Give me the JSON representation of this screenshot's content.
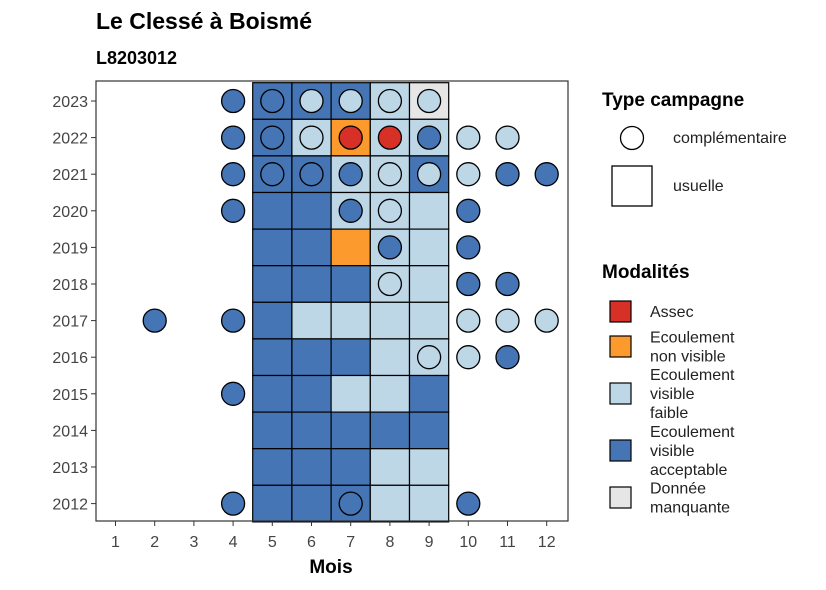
{
  "header": {
    "title": "Le Clessé  à Boismé",
    "subtitle": "L8203012"
  },
  "chart_data": {
    "type": "heatmap",
    "title": "Le Clessé  à Boismé",
    "subtitle": "L8203012",
    "xlabel": "Mois",
    "ylabel": "",
    "x_ticks": [
      "1",
      "2",
      "3",
      "4",
      "5",
      "6",
      "7",
      "8",
      "9",
      "10",
      "11",
      "12"
    ],
    "y_ticks": [
      "2023",
      "2022",
      "2021",
      "2020",
      "2019",
      "2018",
      "2017",
      "2016",
      "2015",
      "2014",
      "2013",
      "2012"
    ],
    "grid": false,
    "legend_position": "right",
    "colors": {
      "Assec": "#d73027",
      "Ecoulement non visible": "#fd9a2e",
      "Ecoulement visible faible": "#bdd7e7",
      "Ecoulement visible acceptable": "#4575b4",
      "Donnée manquante": "#e6e6e6"
    },
    "legend_type": {
      "title": "Type campagne",
      "items": [
        {
          "label": "complémentaire",
          "shape": "circle"
        },
        {
          "label": "usuelle",
          "shape": "square"
        }
      ]
    },
    "legend_modalites": {
      "title": "Modalités",
      "items": [
        {
          "key": "Assec",
          "lines": [
            "Assec"
          ]
        },
        {
          "key": "Ecoulement non visible",
          "lines": [
            "Ecoulement",
            "non visible"
          ]
        },
        {
          "key": "Ecoulement visible faible",
          "lines": [
            "Ecoulement",
            "visible",
            "faible"
          ]
        },
        {
          "key": "Ecoulement visible acceptable",
          "lines": [
            "Ecoulement",
            "visible",
            "acceptable"
          ]
        },
        {
          "key": "Donnée manquante",
          "lines": [
            "Donnée",
            "manquante"
          ]
        }
      ]
    },
    "usuelle": [
      {
        "year": 2023,
        "month": 5,
        "value": "Ecoulement visible acceptable"
      },
      {
        "year": 2023,
        "month": 6,
        "value": "Ecoulement visible acceptable"
      },
      {
        "year": 2023,
        "month": 7,
        "value": "Ecoulement visible acceptable"
      },
      {
        "year": 2023,
        "month": 8,
        "value": "Ecoulement visible faible"
      },
      {
        "year": 2023,
        "month": 9,
        "value": "Donnée manquante"
      },
      {
        "year": 2022,
        "month": 5,
        "value": "Ecoulement visible acceptable"
      },
      {
        "year": 2022,
        "month": 6,
        "value": "Ecoulement visible faible"
      },
      {
        "year": 2022,
        "month": 7,
        "value": "Ecoulement non visible"
      },
      {
        "year": 2022,
        "month": 8,
        "value": "Ecoulement visible faible"
      },
      {
        "year": 2022,
        "month": 9,
        "value": "Ecoulement visible faible"
      },
      {
        "year": 2021,
        "month": 5,
        "value": "Ecoulement visible acceptable"
      },
      {
        "year": 2021,
        "month": 6,
        "value": "Ecoulement visible acceptable"
      },
      {
        "year": 2021,
        "month": 7,
        "value": "Ecoulement visible faible"
      },
      {
        "year": 2021,
        "month": 8,
        "value": "Ecoulement visible faible"
      },
      {
        "year": 2021,
        "month": 9,
        "value": "Ecoulement visible acceptable"
      },
      {
        "year": 2020,
        "month": 5,
        "value": "Ecoulement visible acceptable"
      },
      {
        "year": 2020,
        "month": 6,
        "value": "Ecoulement visible acceptable"
      },
      {
        "year": 2020,
        "month": 7,
        "value": "Ecoulement visible faible"
      },
      {
        "year": 2020,
        "month": 8,
        "value": "Ecoulement visible faible"
      },
      {
        "year": 2020,
        "month": 9,
        "value": "Ecoulement visible faible"
      },
      {
        "year": 2019,
        "month": 5,
        "value": "Ecoulement visible acceptable"
      },
      {
        "year": 2019,
        "month": 6,
        "value": "Ecoulement visible acceptable"
      },
      {
        "year": 2019,
        "month": 7,
        "value": "Ecoulement non visible"
      },
      {
        "year": 2019,
        "month": 8,
        "value": "Ecoulement visible faible"
      },
      {
        "year": 2019,
        "month": 9,
        "value": "Ecoulement visible faible"
      },
      {
        "year": 2018,
        "month": 5,
        "value": "Ecoulement visible acceptable"
      },
      {
        "year": 2018,
        "month": 6,
        "value": "Ecoulement visible acceptable"
      },
      {
        "year": 2018,
        "month": 7,
        "value": "Ecoulement visible acceptable"
      },
      {
        "year": 2018,
        "month": 8,
        "value": "Ecoulement visible faible"
      },
      {
        "year": 2018,
        "month": 9,
        "value": "Ecoulement visible faible"
      },
      {
        "year": 2017,
        "month": 5,
        "value": "Ecoulement visible acceptable"
      },
      {
        "year": 2017,
        "month": 6,
        "value": "Ecoulement visible faible"
      },
      {
        "year": 2017,
        "month": 7,
        "value": "Ecoulement visible faible"
      },
      {
        "year": 2017,
        "month": 8,
        "value": "Ecoulement visible faible"
      },
      {
        "year": 2017,
        "month": 9,
        "value": "Ecoulement visible faible"
      },
      {
        "year": 2016,
        "month": 5,
        "value": "Ecoulement visible acceptable"
      },
      {
        "year": 2016,
        "month": 6,
        "value": "Ecoulement visible acceptable"
      },
      {
        "year": 2016,
        "month": 7,
        "value": "Ecoulement visible acceptable"
      },
      {
        "year": 2016,
        "month": 8,
        "value": "Ecoulement visible faible"
      },
      {
        "year": 2016,
        "month": 9,
        "value": "Ecoulement visible faible"
      },
      {
        "year": 2015,
        "month": 5,
        "value": "Ecoulement visible acceptable"
      },
      {
        "year": 2015,
        "month": 6,
        "value": "Ecoulement visible acceptable"
      },
      {
        "year": 2015,
        "month": 7,
        "value": "Ecoulement visible faible"
      },
      {
        "year": 2015,
        "month": 8,
        "value": "Ecoulement visible faible"
      },
      {
        "year": 2015,
        "month": 9,
        "value": "Ecoulement visible acceptable"
      },
      {
        "year": 2014,
        "month": 5,
        "value": "Ecoulement visible acceptable"
      },
      {
        "year": 2014,
        "month": 6,
        "value": "Ecoulement visible acceptable"
      },
      {
        "year": 2014,
        "month": 7,
        "value": "Ecoulement visible acceptable"
      },
      {
        "year": 2014,
        "month": 8,
        "value": "Ecoulement visible acceptable"
      },
      {
        "year": 2014,
        "month": 9,
        "value": "Ecoulement visible acceptable"
      },
      {
        "year": 2013,
        "month": 5,
        "value": "Ecoulement visible acceptable"
      },
      {
        "year": 2013,
        "month": 6,
        "value": "Ecoulement visible acceptable"
      },
      {
        "year": 2013,
        "month": 7,
        "value": "Ecoulement visible acceptable"
      },
      {
        "year": 2013,
        "month": 8,
        "value": "Ecoulement visible faible"
      },
      {
        "year": 2013,
        "month": 9,
        "value": "Ecoulement visible faible"
      },
      {
        "year": 2012,
        "month": 5,
        "value": "Ecoulement visible acceptable"
      },
      {
        "year": 2012,
        "month": 6,
        "value": "Ecoulement visible acceptable"
      },
      {
        "year": 2012,
        "month": 7,
        "value": "Ecoulement visible acceptable"
      },
      {
        "year": 2012,
        "month": 8,
        "value": "Ecoulement visible faible"
      },
      {
        "year": 2012,
        "month": 9,
        "value": "Ecoulement visible faible"
      }
    ],
    "complementaire": [
      {
        "year": 2023,
        "month": 4,
        "value": "Ecoulement visible acceptable"
      },
      {
        "year": 2023,
        "month": 5,
        "value": "Ecoulement visible acceptable"
      },
      {
        "year": 2023,
        "month": 6,
        "value": "Ecoulement visible faible"
      },
      {
        "year": 2023,
        "month": 7,
        "value": "Ecoulement visible faible"
      },
      {
        "year": 2023,
        "month": 8,
        "value": "Ecoulement visible faible"
      },
      {
        "year": 2023,
        "month": 9,
        "value": "Ecoulement visible faible"
      },
      {
        "year": 2022,
        "month": 4,
        "value": "Ecoulement visible acceptable"
      },
      {
        "year": 2022,
        "month": 5,
        "value": "Ecoulement visible acceptable"
      },
      {
        "year": 2022,
        "month": 6,
        "value": "Ecoulement visible faible"
      },
      {
        "year": 2022,
        "month": 7,
        "value": "Assec"
      },
      {
        "year": 2022,
        "month": 8,
        "value": "Assec"
      },
      {
        "year": 2022,
        "month": 9,
        "value": "Ecoulement visible acceptable"
      },
      {
        "year": 2022,
        "month": 10,
        "value": "Ecoulement visible faible"
      },
      {
        "year": 2022,
        "month": 11,
        "value": "Ecoulement visible faible"
      },
      {
        "year": 2021,
        "month": 4,
        "value": "Ecoulement visible acceptable"
      },
      {
        "year": 2021,
        "month": 5,
        "value": "Ecoulement visible acceptable"
      },
      {
        "year": 2021,
        "month": 6,
        "value": "Ecoulement visible acceptable"
      },
      {
        "year": 2021,
        "month": 7,
        "value": "Ecoulement visible acceptable"
      },
      {
        "year": 2021,
        "month": 8,
        "value": "Ecoulement visible faible"
      },
      {
        "year": 2021,
        "month": 9,
        "value": "Ecoulement visible faible"
      },
      {
        "year": 2021,
        "month": 10,
        "value": "Ecoulement visible faible"
      },
      {
        "year": 2021,
        "month": 11,
        "value": "Ecoulement visible acceptable"
      },
      {
        "year": 2021,
        "month": 12,
        "value": "Ecoulement visible acceptable"
      },
      {
        "year": 2020,
        "month": 4,
        "value": "Ecoulement visible acceptable"
      },
      {
        "year": 2020,
        "month": 7,
        "value": "Ecoulement visible acceptable"
      },
      {
        "year": 2020,
        "month": 8,
        "value": "Ecoulement visible faible"
      },
      {
        "year": 2020,
        "month": 10,
        "value": "Ecoulement visible acceptable"
      },
      {
        "year": 2019,
        "month": 8,
        "value": "Ecoulement visible acceptable"
      },
      {
        "year": 2019,
        "month": 10,
        "value": "Ecoulement visible acceptable"
      },
      {
        "year": 2018,
        "month": 8,
        "value": "Ecoulement visible faible"
      },
      {
        "year": 2018,
        "month": 10,
        "value": "Ecoulement visible acceptable"
      },
      {
        "year": 2018,
        "month": 11,
        "value": "Ecoulement visible acceptable"
      },
      {
        "year": 2017,
        "month": 2,
        "value": "Ecoulement visible acceptable"
      },
      {
        "year": 2017,
        "month": 4,
        "value": "Ecoulement visible acceptable"
      },
      {
        "year": 2017,
        "month": 10,
        "value": "Ecoulement visible faible"
      },
      {
        "year": 2017,
        "month": 11,
        "value": "Ecoulement visible faible"
      },
      {
        "year": 2017,
        "month": 12,
        "value": "Ecoulement visible faible"
      },
      {
        "year": 2016,
        "month": 9,
        "value": "Ecoulement visible faible"
      },
      {
        "year": 2016,
        "month": 10,
        "value": "Ecoulement visible faible"
      },
      {
        "year": 2016,
        "month": 11,
        "value": "Ecoulement visible acceptable"
      },
      {
        "year": 2015,
        "month": 4,
        "value": "Ecoulement visible acceptable"
      },
      {
        "year": 2012,
        "month": 4,
        "value": "Ecoulement visible acceptable"
      },
      {
        "year": 2012,
        "month": 7,
        "value": "Ecoulement visible acceptable"
      },
      {
        "year": 2012,
        "month": 10,
        "value": "Ecoulement visible acceptable"
      }
    ]
  }
}
